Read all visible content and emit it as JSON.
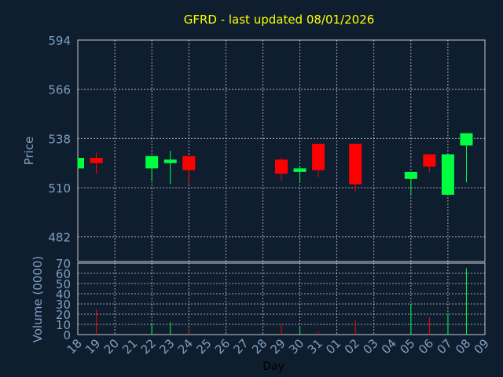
{
  "title": "GFRD - last updated 08/01/2026",
  "colors": {
    "background": "#0f1e2f",
    "title": "#ffff00",
    "axis_text": "#7f9fc0",
    "grid": "#e8e8e8",
    "up": "#00ff40",
    "down": "#ff0000"
  },
  "chart_data": [
    {
      "type": "candlestick",
      "ylabel": "Price",
      "ylim": [
        468,
        594
      ],
      "yticks": [
        482,
        510,
        538,
        566,
        594
      ],
      "grid": true,
      "candles": [
        {
          "x": 0,
          "open": 521,
          "close": 527,
          "high": 527,
          "low": 521
        },
        {
          "x": 1,
          "open": 527,
          "close": 524,
          "high": 530,
          "low": 518
        },
        {
          "x": 4,
          "open": 521,
          "close": 528,
          "high": 528,
          "low": 514
        },
        {
          "x": 5,
          "open": 524,
          "close": 526,
          "high": 531,
          "low": 512
        },
        {
          "x": 6,
          "open": 528,
          "close": 520,
          "high": 528,
          "low": 512
        },
        {
          "x": 11,
          "open": 526,
          "close": 518,
          "high": 527,
          "low": 514
        },
        {
          "x": 12,
          "open": 519,
          "close": 521,
          "high": 522,
          "low": 513
        },
        {
          "x": 13,
          "open": 535,
          "close": 520,
          "high": 535,
          "low": 516
        },
        {
          "x": 15,
          "open": 535,
          "close": 512,
          "high": 535,
          "low": 508
        },
        {
          "x": 18,
          "open": 515,
          "close": 519,
          "high": 519,
          "low": 506
        },
        {
          "x": 19,
          "open": 529,
          "close": 522,
          "high": 529,
          "low": 519
        },
        {
          "x": 20,
          "open": 506,
          "close": 529,
          "high": 529,
          "low": 506
        },
        {
          "x": 21,
          "open": 534,
          "close": 541,
          "high": 541,
          "low": 513
        }
      ]
    },
    {
      "type": "bar",
      "ylabel": "Volume (0000)",
      "xlabel": "Day",
      "ylim": [
        0,
        70
      ],
      "yticks": [
        0,
        10,
        20,
        30,
        40,
        50,
        60,
        70
      ],
      "grid": true,
      "categories": [
        "18",
        "19",
        "20",
        "21",
        "22",
        "23",
        "24",
        "25",
        "26",
        "27",
        "28",
        "29",
        "30",
        "31",
        "01",
        "02",
        "03",
        "04",
        "05",
        "06",
        "07",
        "08",
        "09"
      ],
      "volumes": [
        {
          "x": 1,
          "value": 25,
          "dir": "down"
        },
        {
          "x": 4,
          "value": 10,
          "dir": "up"
        },
        {
          "x": 5,
          "value": 12,
          "dir": "up"
        },
        {
          "x": 6,
          "value": 5,
          "dir": "down"
        },
        {
          "x": 11,
          "value": 10,
          "dir": "down"
        },
        {
          "x": 12,
          "value": 7,
          "dir": "up"
        },
        {
          "x": 13,
          "value": 3,
          "dir": "down"
        },
        {
          "x": 15,
          "value": 14,
          "dir": "down"
        },
        {
          "x": 18,
          "value": 30,
          "dir": "up"
        },
        {
          "x": 19,
          "value": 17,
          "dir": "down"
        },
        {
          "x": 20,
          "value": 21,
          "dir": "up"
        },
        {
          "x": 21,
          "value": 65,
          "dir": "up"
        }
      ]
    }
  ]
}
